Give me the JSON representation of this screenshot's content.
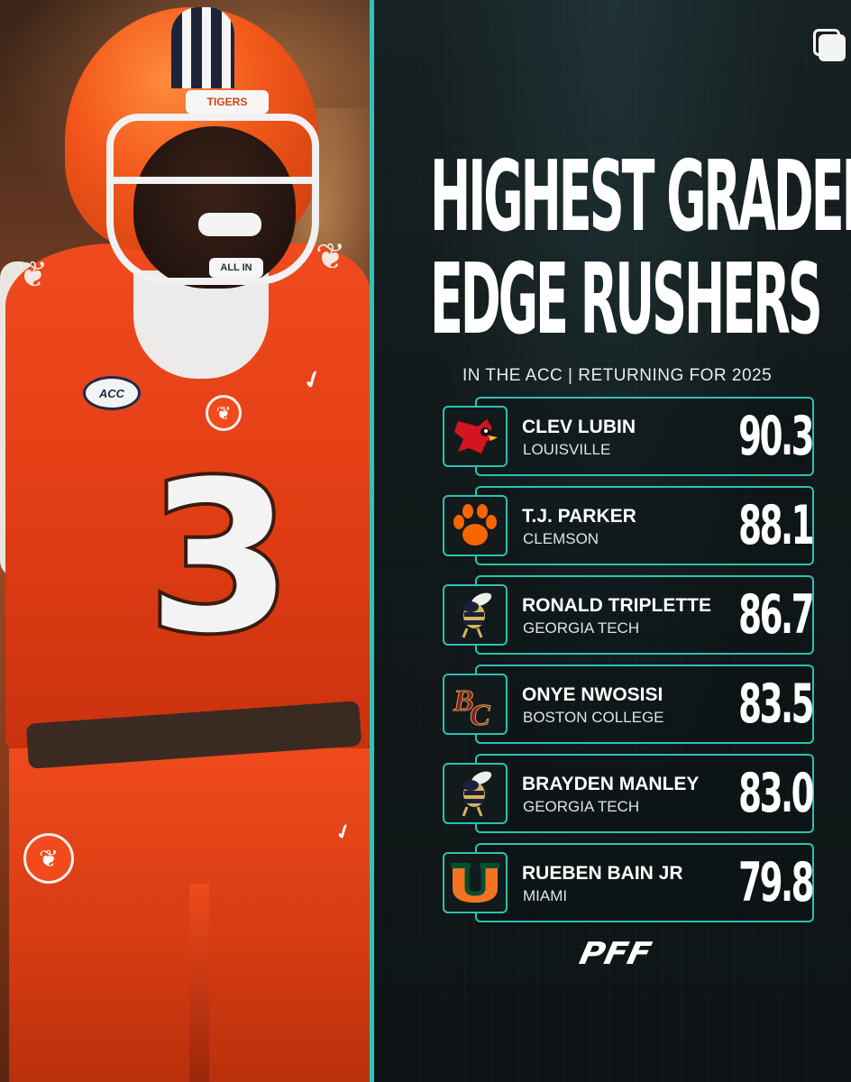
{
  "photo": {
    "helmet_text": "TIGERS",
    "mouthguard_text": "ALL IN",
    "patch_text": "ACC",
    "jersey_number": "3"
  },
  "graphic": {
    "title_line1": "HIGHEST GRADED",
    "title_line2": "EDGE RUSHERS",
    "subtitle": "IN THE ACC | RETURNING FOR 2025",
    "brand": "PFF",
    "accent_color": "#2cc1b2",
    "rows": [
      {
        "name": "CLEV LUBIN",
        "school": "LOUISVILLE",
        "grade": "90.3",
        "logo_icon": "louisville-cardinal-logo"
      },
      {
        "name": "T.J. PARKER",
        "school": "CLEMSON",
        "grade": "88.1",
        "logo_icon": "clemson-paw-logo"
      },
      {
        "name": "RONALD TRIPLETTE",
        "school": "GEORGIA TECH",
        "grade": "86.7",
        "logo_icon": "georgia-tech-buzz-logo"
      },
      {
        "name": "ONYE NWOSISI",
        "school": "BOSTON COLLEGE",
        "grade": "83.5",
        "logo_icon": "boston-college-bc-logo"
      },
      {
        "name": "BRAYDEN MANLEY",
        "school": "GEORGIA TECH",
        "grade": "83.0",
        "logo_icon": "georgia-tech-buzz-logo"
      },
      {
        "name": "RUEBEN BAIN JR",
        "school": "MIAMI",
        "grade": "79.8",
        "logo_icon": "miami-u-logo"
      }
    ]
  }
}
